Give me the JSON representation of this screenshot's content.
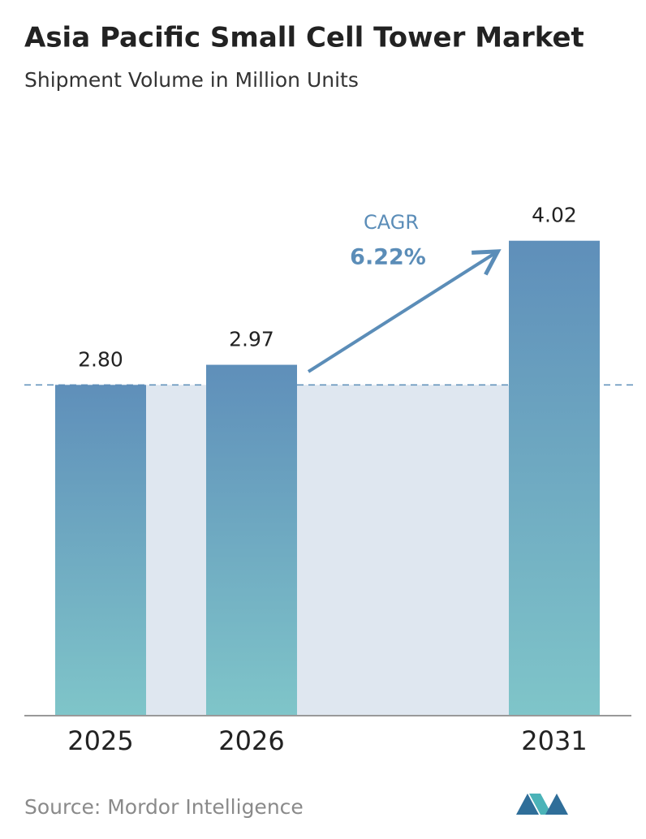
{
  "chart_data": {
    "type": "bar",
    "title": "Asia Pacific Small Cell Tower Market",
    "subtitle": "Shipment Volume in Million Units",
    "categories": [
      "2025",
      "2026",
      "2031"
    ],
    "values": [
      2.8,
      2.97,
      4.02
    ],
    "value_labels": [
      "2.80",
      "2.97",
      "4.02"
    ],
    "color": "#5b8db8",
    "ylim": [
      0,
      5
    ],
    "annotation": {
      "label": "CAGR",
      "value": "6.22%"
    },
    "source": "Source: Mordor Intelligence"
  }
}
